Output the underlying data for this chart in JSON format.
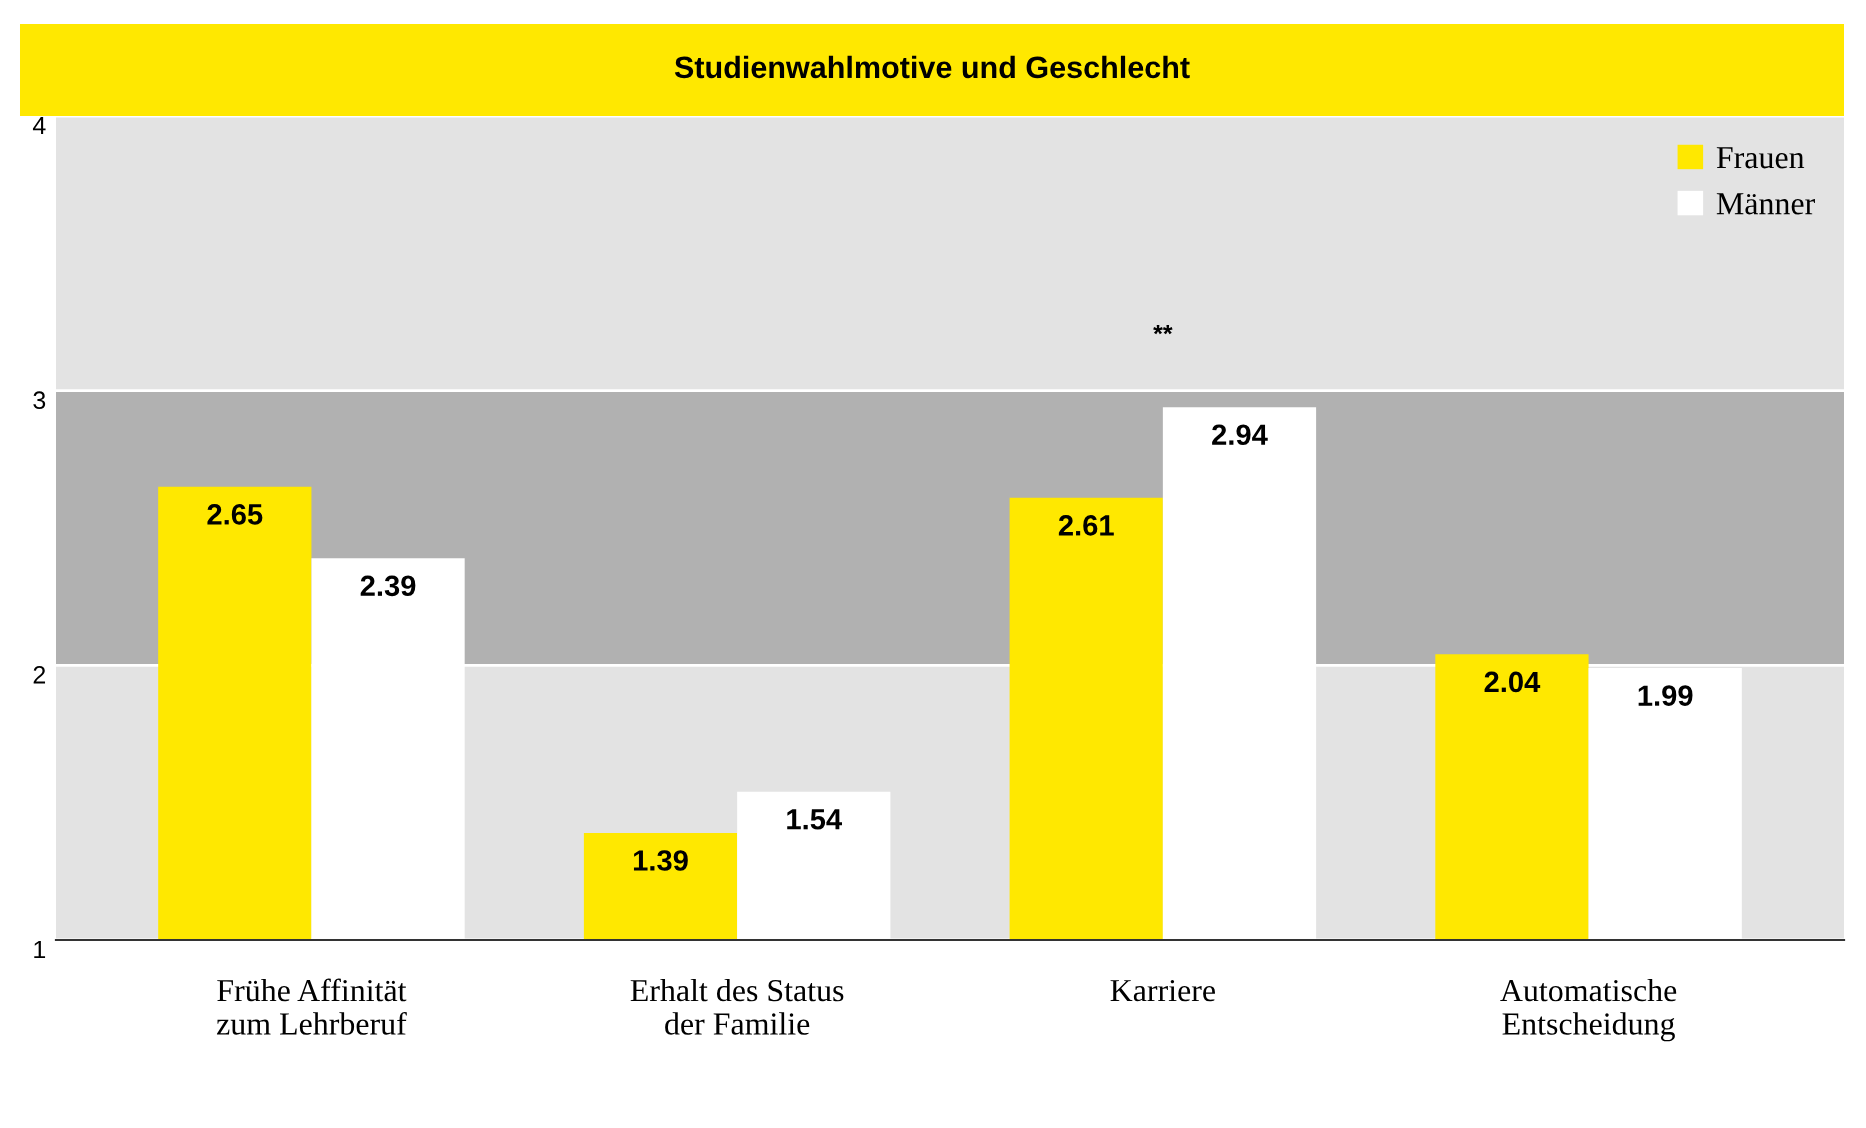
{
  "chart_data": {
    "type": "bar",
    "title": "Studienwahlmotive und Geschlecht",
    "categories": [
      "Frühe Affinität\nzum Lehrberuf",
      "Erhalt des Status\nder Familie",
      "Karriere",
      "Automatische\nEntscheidung"
    ],
    "series": [
      {
        "name": "Frauen",
        "color": "#ffe800",
        "values": [
          2.65,
          1.39,
          2.61,
          2.04
        ]
      },
      {
        "name": "Männer",
        "color": "#ffffff",
        "values": [
          2.39,
          1.54,
          2.94,
          1.99
        ]
      }
    ],
    "ylim": [
      1,
      4
    ],
    "yticks": [
      1,
      2,
      3,
      4
    ],
    "bands": [
      {
        "axis": "y",
        "from": 1,
        "to": 2,
        "color": "#e3e3e3"
      },
      {
        "axis": "y",
        "from": 2,
        "to": 3,
        "color": "#b1b1b1"
      },
      {
        "axis": "y",
        "from": 3,
        "to": 4,
        "color": "#e3e3e3"
      }
    ],
    "annotations": [
      "**"
    ],
    "data_labels": true,
    "legend": "top right",
    "grid": "y"
  }
}
